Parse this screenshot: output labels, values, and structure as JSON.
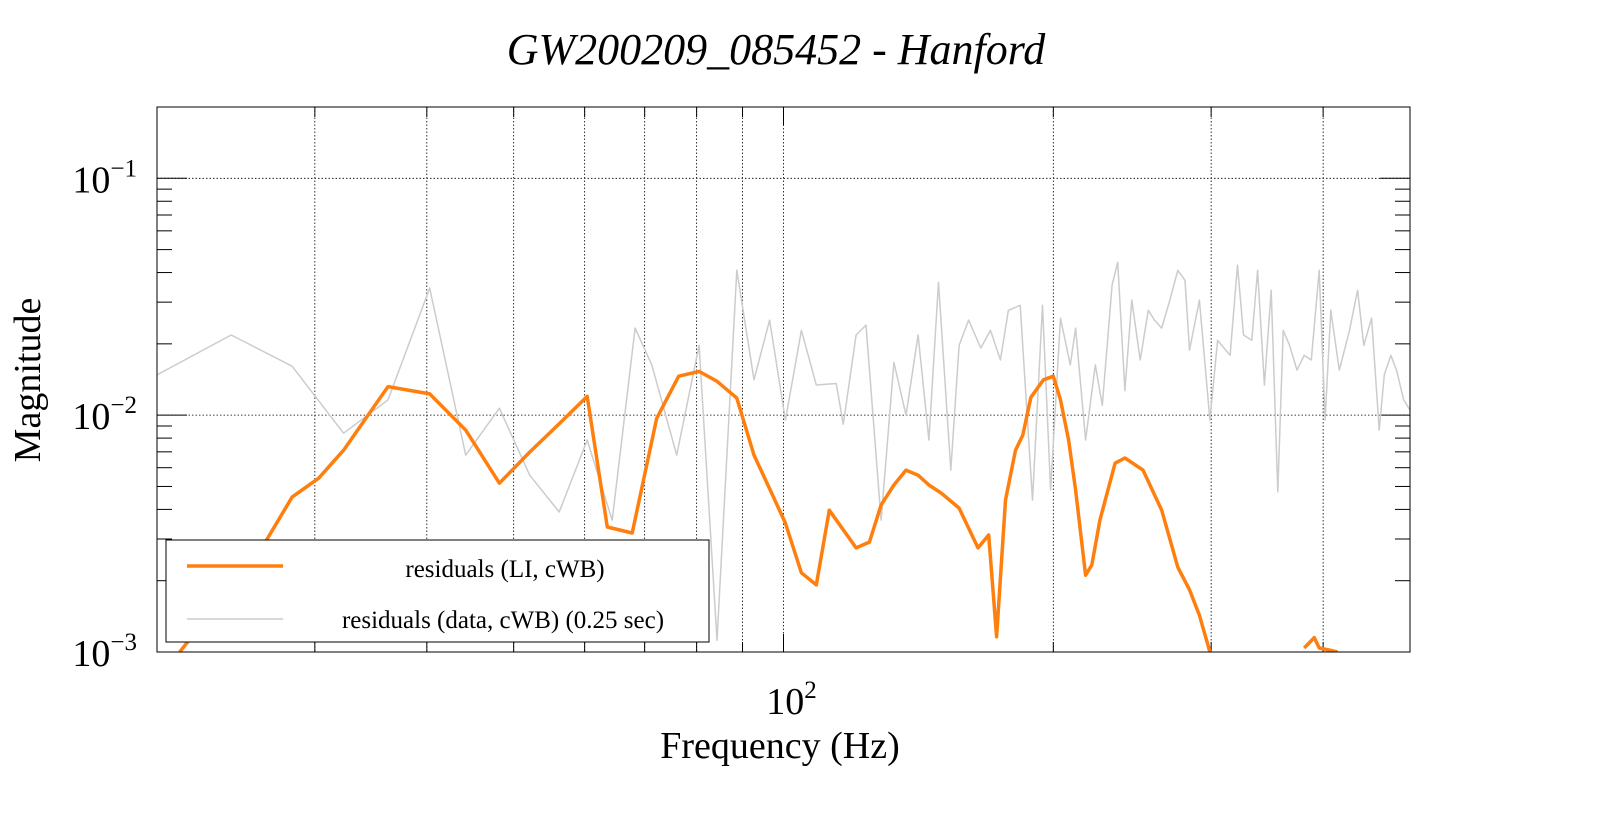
{
  "chart_data": {
    "type": "line",
    "title": "GW200209_085452 - Hanford",
    "xlabel": "Frequency (Hz)",
    "ylabel": "Magnitude",
    "xscale": "log",
    "yscale": "log",
    "xlim": [
      20,
      500
    ],
    "ylim": [
      0.001,
      0.2
    ],
    "x_tick_labels": [
      {
        "value": 100,
        "base": "10",
        "exp": "2"
      }
    ],
    "y_tick_labels": [
      {
        "value": 0.1,
        "base": "10",
        "exp": "−1"
      },
      {
        "value": 0.01,
        "base": "10",
        "exp": "−2"
      },
      {
        "value": 0.001,
        "base": "10",
        "exp": "−3"
      }
    ],
    "x_gridlines": [
      30,
      40,
      50,
      60,
      70,
      80,
      90,
      100,
      200,
      300,
      400
    ],
    "y_gridlines": [
      0.1,
      0.01
    ],
    "grid": true,
    "legend_position": "bottom-left",
    "series": [
      {
        "name": "residuals (LI, cWB)",
        "color": "#ff7f0e",
        "segments": [
          [
            [
              21.2,
              0.001
            ],
            [
              22.6,
              0.00136
            ],
            [
              26.3,
              0.00283
            ],
            [
              28.3,
              0.00451
            ],
            [
              30.3,
              0.00542
            ],
            [
              32.3,
              0.00711
            ],
            [
              36.2,
              0.0132
            ],
            [
              40.3,
              0.0123
            ],
            [
              44.2,
              0.00865
            ],
            [
              48.2,
              0.00516
            ],
            [
              52.1,
              0.00698
            ],
            [
              56.0,
              0.00908
            ],
            [
              60.4,
              0.012
            ],
            [
              63.6,
              0.00337
            ],
            [
              67.8,
              0.00318
            ],
            [
              72.2,
              0.0097
            ],
            [
              76.4,
              0.0146
            ],
            [
              80.5,
              0.0153
            ],
            [
              84.3,
              0.0139
            ],
            [
              88.7,
              0.0118
            ],
            [
              92.7,
              0.00678
            ],
            [
              97.0,
              0.00469
            ],
            [
              100.5,
              0.0035
            ],
            [
              104.7,
              0.00216
            ],
            [
              108.8,
              0.00192
            ],
            [
              112.5,
              0.00397
            ],
            [
              120.5,
              0.00275
            ],
            [
              124.7,
              0.00291
            ],
            [
              128.5,
              0.00417
            ],
            [
              132.8,
              0.00507
            ],
            [
              137.0,
              0.00586
            ],
            [
              141.3,
              0.00558
            ],
            [
              145.3,
              0.00507
            ],
            [
              149.9,
              0.00469
            ],
            [
              157.0,
              0.00405
            ],
            [
              164.8,
              0.00275
            ],
            [
              169.4,
              0.00312
            ],
            [
              172.9,
              0.00116
            ],
            [
              176.9,
              0.00438
            ],
            [
              181.5,
              0.00711
            ],
            [
              184.9,
              0.00824
            ],
            [
              188.8,
              0.0119
            ],
            [
              195.0,
              0.0141
            ],
            [
              200,
              0.0146
            ],
            [
              203.7,
              0.0116
            ],
            [
              208.0,
              0.00785
            ],
            [
              211.8,
              0.00483
            ],
            [
              217.3,
              0.00211
            ],
            [
              220.8,
              0.00233
            ],
            [
              225.4,
              0.0036
            ],
            [
              234.4,
              0.00627
            ],
            [
              240.4,
              0.00659
            ],
            [
              251.8,
              0.00586
            ],
            [
              264.2,
              0.00397
            ],
            [
              275.4,
              0.00228
            ],
            [
              283.8,
              0.00183
            ],
            [
              291.1,
              0.00143
            ],
            [
              299,
              0.001
            ]
          ],
          [
            [
              381,
              0.00104
            ],
            [
              391,
              0.00115
            ],
            [
              396,
              0.00104
            ],
            [
              406,
              0.00102
            ],
            [
              415,
              0.001
            ]
          ]
        ]
      },
      {
        "name": "residuals (data, cWB) (0.25 sec)",
        "color": "#cccccc",
        "segments": [
          [
            [
              20,
              0.0148
            ],
            [
              24.2,
              0.0218
            ],
            [
              28.3,
              0.0161
            ],
            [
              32.3,
              0.00839
            ],
            [
              36.2,
              0.0116
            ],
            [
              40.3,
              0.0344
            ],
            [
              44.2,
              0.00678
            ],
            [
              48.2,
              0.0107
            ],
            [
              52.1,
              0.00558
            ],
            [
              56.2,
              0.0039
            ],
            [
              60.4,
              0.00785
            ],
            [
              64.4,
              0.0036
            ],
            [
              68.3,
              0.0233
            ],
            [
              71.3,
              0.0163
            ],
            [
              76.0,
              0.00678
            ],
            [
              80.5,
              0.0197
            ],
            [
              84.3,
              0.00112
            ],
            [
              88.7,
              0.0409
            ],
            [
              92.7,
              0.0141
            ],
            [
              96.5,
              0.0252
            ],
            [
              100.5,
              0.00953
            ],
            [
              104.7,
              0.0228
            ],
            [
              108.8,
              0.0134
            ],
            [
              114.5,
              0.0136
            ],
            [
              116.6,
              0.00916
            ],
            [
              120.5,
              0.0218
            ],
            [
              123.6,
              0.024
            ],
            [
              128.5,
              0.0036
            ],
            [
              132.8,
              0.0167
            ],
            [
              137.0,
              0.01
            ],
            [
              141.3,
              0.0218
            ],
            [
              145.3,
              0.00785
            ],
            [
              148.9,
              0.0364
            ],
            [
              153.7,
              0.00586
            ],
            [
              157.0,
              0.0197
            ],
            [
              160.9,
              0.0252
            ],
            [
              166,
              0.0192
            ],
            [
              170.2,
              0.0228
            ],
            [
              174.6,
              0.0171
            ],
            [
              178.2,
              0.0277
            ],
            [
              183.7,
              0.0291
            ],
            [
              189.6,
              0.00438
            ],
            [
              194.5,
              0.0291
            ],
            [
              198.6,
              0.00483
            ],
            [
              203.7,
              0.0257
            ],
            [
              208.9,
              0.0163
            ],
            [
              211.8,
              0.0233
            ],
            [
              217.3,
              0.00785
            ],
            [
              222.8,
              0.0163
            ],
            [
              226.8,
              0.011
            ],
            [
              232.6,
              0.0354
            ],
            [
              236.0,
              0.0442
            ],
            [
              240.4,
              0.0127
            ],
            [
              244.7,
              0.0306
            ],
            [
              250.0,
              0.0171
            ],
            [
              255.3,
              0.0277
            ],
            [
              259.4,
              0.0252
            ],
            [
              264.2,
              0.0233
            ],
            [
              269.8,
              0.0306
            ],
            [
              275.4,
              0.0409
            ],
            [
              280.5,
              0.0371
            ],
            [
              283.8,
              0.0188
            ],
            [
              291.1,
              0.0306
            ],
            [
              299,
              0.00953
            ],
            [
              305,
              0.0207
            ],
            [
              315,
              0.0179
            ],
            [
              321,
              0.043
            ],
            [
              326,
              0.0218
            ],
            [
              333,
              0.0207
            ],
            [
              338,
              0.0409
            ],
            [
              344,
              0.0134
            ],
            [
              350,
              0.0337
            ],
            [
              356,
              0.00474
            ],
            [
              361,
              0.0228
            ],
            [
              367,
              0.0197
            ],
            [
              374,
              0.0155
            ],
            [
              381,
              0.0179
            ],
            [
              388,
              0.0171
            ],
            [
              396,
              0.0409
            ],
            [
              402,
              0.00953
            ],
            [
              408,
              0.0277
            ],
            [
              417,
              0.0155
            ],
            [
              428,
              0.0228
            ],
            [
              437,
              0.0337
            ],
            [
              444,
              0.0197
            ],
            [
              453,
              0.0257
            ],
            [
              462,
              0.00865
            ],
            [
              468,
              0.0148
            ],
            [
              476,
              0.0179
            ],
            [
              483,
              0.0155
            ],
            [
              492,
              0.0116
            ],
            [
              500,
              0.0105
            ]
          ]
        ]
      }
    ]
  }
}
